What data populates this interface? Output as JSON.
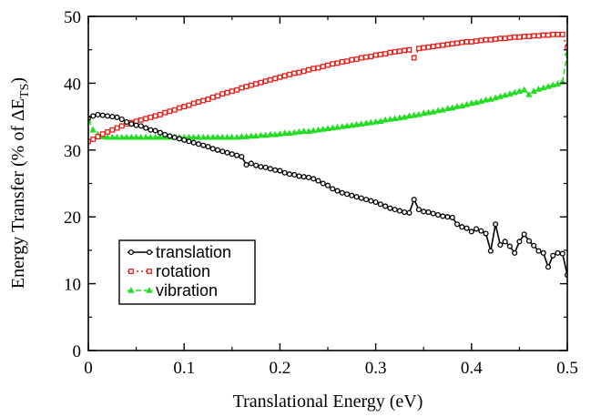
{
  "chart_data": {
    "type": "line",
    "title": "",
    "xlabel": "Translational Energy (eV)",
    "ylabel_main": "Energy Transfer (% of ΔE",
    "ylabel_sub": "TS",
    "ylabel_end": ")",
    "xlim": [
      0,
      0.5
    ],
    "ylim": [
      0,
      50
    ],
    "xticks": [
      0,
      0.1,
      0.2,
      0.3,
      0.4,
      0.5
    ],
    "xtick_labels": [
      "0",
      "0.1",
      "0.2",
      "0.3",
      "0.4",
      "0.5"
    ],
    "yticks": [
      0,
      10,
      20,
      30,
      40,
      50
    ],
    "ytick_labels": [
      "0",
      "10",
      "20",
      "30",
      "40",
      "50"
    ],
    "grid": false,
    "legend_position": "bottom-left",
    "x": [
      0.0,
      0.005,
      0.01,
      0.015,
      0.02,
      0.025,
      0.03,
      0.035,
      0.04,
      0.045,
      0.05,
      0.055,
      0.06,
      0.065,
      0.07,
      0.075,
      0.08,
      0.085,
      0.09,
      0.095,
      0.1,
      0.105,
      0.11,
      0.115,
      0.12,
      0.125,
      0.13,
      0.135,
      0.14,
      0.145,
      0.15,
      0.155,
      0.16,
      0.165,
      0.17,
      0.175,
      0.18,
      0.185,
      0.19,
      0.195,
      0.2,
      0.205,
      0.21,
      0.215,
      0.22,
      0.225,
      0.23,
      0.235,
      0.24,
      0.245,
      0.25,
      0.255,
      0.26,
      0.265,
      0.27,
      0.275,
      0.28,
      0.285,
      0.29,
      0.295,
      0.3,
      0.305,
      0.31,
      0.315,
      0.32,
      0.325,
      0.33,
      0.335,
      0.34,
      0.345,
      0.35,
      0.355,
      0.36,
      0.365,
      0.37,
      0.375,
      0.38,
      0.385,
      0.39,
      0.395,
      0.4,
      0.405,
      0.41,
      0.415,
      0.42,
      0.425,
      0.43,
      0.435,
      0.44,
      0.445,
      0.45,
      0.455,
      0.46,
      0.465,
      0.47,
      0.475,
      0.48,
      0.485,
      0.49,
      0.495,
      0.5
    ],
    "series": [
      {
        "name": "translation",
        "color": "#000000",
        "marker": "circle",
        "values": [
          34.8,
          35.1,
          35.3,
          35.2,
          35.1,
          35.0,
          34.9,
          34.6,
          34.2,
          33.9,
          33.7,
          33.6,
          33.3,
          33.0,
          32.9,
          32.6,
          32.3,
          32.1,
          31.9,
          31.7,
          31.5,
          31.3,
          31.1,
          30.9,
          30.7,
          30.5,
          30.2,
          30.0,
          29.8,
          29.6,
          29.4,
          29.2,
          29.0,
          27.8,
          28.0,
          27.7,
          27.5,
          27.4,
          27.2,
          27.0,
          26.9,
          26.6,
          26.4,
          26.3,
          26.1,
          26.0,
          25.9,
          25.7,
          25.4,
          25.0,
          24.7,
          24.2,
          23.9,
          23.6,
          23.4,
          23.2,
          23.0,
          22.8,
          22.6,
          22.4,
          22.2,
          21.9,
          21.6,
          21.3,
          21.1,
          20.9,
          20.7,
          20.6,
          22.6,
          21.1,
          20.8,
          20.7,
          20.5,
          20.3,
          20.1,
          20.0,
          19.9,
          18.9,
          18.5,
          18.3,
          17.8,
          18.2,
          17.9,
          17.5,
          14.9,
          18.9,
          15.8,
          16.3,
          15.6,
          14.6,
          16.3,
          17.4,
          16.4,
          15.7,
          14.9,
          14.6,
          12.5,
          14.2,
          14.6,
          14.5,
          11.3
        ]
      },
      {
        "name": "rotation",
        "color": "#e8201b",
        "marker": "square",
        "values": [
          31.3,
          31.6,
          32.0,
          32.4,
          32.7,
          33.0,
          33.3,
          33.6,
          33.9,
          34.1,
          34.3,
          34.5,
          34.7,
          34.9,
          35.1,
          35.3,
          35.6,
          35.8,
          36.0,
          36.3,
          36.5,
          36.7,
          37.0,
          37.2,
          37.4,
          37.6,
          37.9,
          38.1,
          38.4,
          38.6,
          38.8,
          39.0,
          39.3,
          39.5,
          39.7,
          39.9,
          40.1,
          40.3,
          40.5,
          40.7,
          40.9,
          41.1,
          41.3,
          41.5,
          41.6,
          41.8,
          42.0,
          42.2,
          42.3,
          42.5,
          42.7,
          42.9,
          43.0,
          43.2,
          43.3,
          43.5,
          43.6,
          43.8,
          43.9,
          44.0,
          44.2,
          44.3,
          44.4,
          44.6,
          44.7,
          44.8,
          44.9,
          45.0,
          43.8,
          45.2,
          45.3,
          45.4,
          45.5,
          45.6,
          45.7,
          45.8,
          45.9,
          46.0,
          46.1,
          46.2,
          46.2,
          46.3,
          46.4,
          46.5,
          46.5,
          46.6,
          46.7,
          46.7,
          46.8,
          46.9,
          46.9,
          47.0,
          47.0,
          47.1,
          47.1,
          47.2,
          47.2,
          47.3,
          47.3,
          47.3,
          45.3
        ]
      },
      {
        "name": "vibration",
        "color": "#22dd22",
        "marker": "triangle",
        "values": [
          34.5,
          33.0,
          32.3,
          32.0,
          31.9,
          31.9,
          31.9,
          31.9,
          31.9,
          31.9,
          31.9,
          31.9,
          31.9,
          31.9,
          31.9,
          31.9,
          31.9,
          31.9,
          31.9,
          31.9,
          31.9,
          31.9,
          31.9,
          31.9,
          31.9,
          31.9,
          31.9,
          31.9,
          31.9,
          31.9,
          31.9,
          31.9,
          32.0,
          32.0,
          32.1,
          32.1,
          32.2,
          32.2,
          32.3,
          32.3,
          32.4,
          32.5,
          32.5,
          32.6,
          32.7,
          32.8,
          32.8,
          32.9,
          33.0,
          33.1,
          33.2,
          33.3,
          33.4,
          33.5,
          33.6,
          33.7,
          33.8,
          33.9,
          34.0,
          34.1,
          34.2,
          34.3,
          34.5,
          34.6,
          34.7,
          34.8,
          34.9,
          35.1,
          35.2,
          35.3,
          35.5,
          35.6,
          35.7,
          35.9,
          36.0,
          36.2,
          36.3,
          36.5,
          36.6,
          36.8,
          37.0,
          37.1,
          37.3,
          37.5,
          37.6,
          37.8,
          38.0,
          38.2,
          38.4,
          38.6,
          38.8,
          39.0,
          38.3,
          38.8,
          39.1,
          39.3,
          39.5,
          39.7,
          39.9,
          40.2,
          44.5
        ]
      }
    ]
  }
}
